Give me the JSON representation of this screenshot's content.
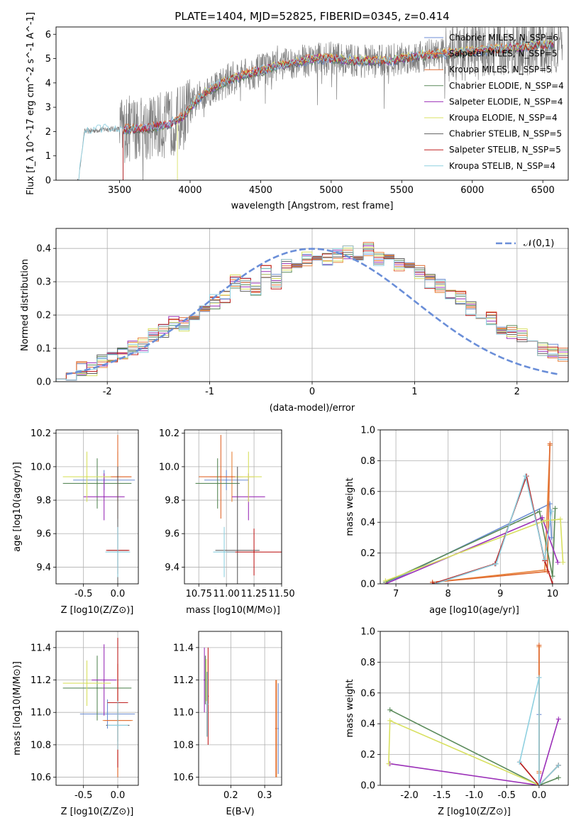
{
  "figure": {
    "title": "PLATE=1404, MJD=52825, FIBERID=0345, z=0.414"
  },
  "colors": {
    "Chabrier MILES": "#6c8ed4",
    "Salpeter MILES": "#e8843c",
    "Kroupa MILES": "#e06a30",
    "Chabrier ELODIE": "#5a8a5a",
    "Salpeter ELODIE": "#9b30b8",
    "Kroupa ELODIE": "#d8e060",
    "Chabrier STELIB": "#606060",
    "Salpeter STELIB": "#c02020",
    "Kroupa STELIB": "#8ed0e0",
    "data": "#808080",
    "gaussian": "#6a8ed8"
  },
  "chart_data": [
    {
      "id": "spectrum",
      "type": "line",
      "title": "PLATE=1404, MJD=52825, FIBERID=0345, z=0.414",
      "xlabel": "wavelength [Angstrom, rest frame]",
      "ylabel": "Flux [f_λ 10^-17 erg cm^-2 s^-1 A^-1]",
      "xlim": [
        3050,
        6680
      ],
      "ylim": [
        0,
        6.3
      ],
      "xticks": [
        3500,
        4000,
        4500,
        5000,
        5500,
        6000,
        6500
      ],
      "yticks": [
        0,
        1,
        2,
        3,
        4,
        5,
        6
      ],
      "legend_position": "right",
      "series": [
        {
          "name": "Chabrier MILES, N_SSP=6"
        },
        {
          "name": "Salpeter MILES, N_SSP=5"
        },
        {
          "name": "Kroupa MILES, N_SSP=5"
        },
        {
          "name": "Chabrier ELODIE, N_SSP=4"
        },
        {
          "name": "Salpeter ELODIE, N_SSP=4"
        },
        {
          "name": "Kroupa ELODIE, N_SSP=4"
        },
        {
          "name": "Chabrier STELIB, N_SSP=5"
        },
        {
          "name": "Salpeter STELIB, N_SSP=5"
        },
        {
          "name": "Kroupa STELIB, N_SSP=4"
        }
      ],
      "continuum_knots": {
        "x": [
          3210,
          3250,
          3400,
          3500,
          3600,
          3700,
          3850,
          3950,
          4000,
          4100,
          4300,
          4500,
          4700,
          4900,
          5000,
          5200,
          5400,
          5600,
          5800,
          6000,
          6200,
          6400,
          6560
        ],
        "y": [
          0.0,
          2.0,
          2.1,
          2.1,
          2.1,
          2.15,
          2.3,
          2.6,
          3.0,
          3.6,
          4.2,
          4.5,
          4.8,
          5.0,
          5.0,
          4.9,
          4.9,
          5.1,
          5.2,
          5.3,
          5.4,
          5.5,
          5.6
        ]
      }
    },
    {
      "id": "residuals",
      "type": "histogram",
      "xlabel": "(data-model)/error",
      "ylabel": "Normed distribution",
      "xlim": [
        -2.5,
        2.5
      ],
      "ylim": [
        0,
        0.46
      ],
      "xticks": [
        -2,
        -1,
        0,
        1,
        2
      ],
      "yticks": [
        0.0,
        0.1,
        0.2,
        0.3,
        0.4
      ],
      "legend": "𝒩(0,1)",
      "legend_position": "top-right",
      "bin_width": 0.1,
      "base_values": [
        0.03,
        0.025,
        0.04,
        0.035,
        0.06,
        0.08,
        0.09,
        0.1,
        0.11,
        0.14,
        0.15,
        0.18,
        0.17,
        0.2,
        0.22,
        0.24,
        0.25,
        0.3,
        0.29,
        0.28,
        0.33,
        0.3,
        0.35,
        0.36,
        0.37,
        0.38,
        0.37,
        0.38,
        0.39,
        0.38,
        0.4,
        0.37,
        0.36,
        0.35,
        0.34,
        0.33,
        0.3,
        0.29,
        0.27,
        0.25,
        0.22,
        0.2,
        0.19,
        0.16,
        0.15,
        0.14,
        0.12,
        0.1,
        0.09,
        0.08
      ]
    },
    {
      "id": "age-vs-Z",
      "type": "scatter",
      "xlabel": "Z [log10(Z/Z⊙)]",
      "ylabel": "age [log10(age/yr)]",
      "xlim": [
        -0.9,
        0.3
      ],
      "ylim": [
        9.3,
        10.22
      ],
      "xticks": [
        -0.5,
        0.0
      ],
      "yticks": [
        9.4,
        9.6,
        9.8,
        10.0,
        10.2
      ],
      "points": [
        {
          "series": "Chabrier MILES",
          "x": -0.2,
          "y": 9.92,
          "xerr": 0.45,
          "yerr": 0.06
        },
        {
          "series": "Salpeter MILES",
          "x": 0.0,
          "y": 9.94,
          "xerr": 0.2,
          "yerr": 0.15
        },
        {
          "series": "Kroupa MILES",
          "x": 0.0,
          "y": 9.94,
          "xerr": 0.2,
          "yerr": 0.25
        },
        {
          "series": "Chabrier ELODIE",
          "x": -0.3,
          "y": 9.9,
          "xerr": 0.5,
          "yerr": 0.15
        },
        {
          "series": "Salpeter ELODIE",
          "x": -0.2,
          "y": 9.82,
          "xerr": 0.3,
          "yerr": 0.14
        },
        {
          "series": "Kroupa ELODIE",
          "x": -0.45,
          "y": 9.94,
          "xerr": 0.35,
          "yerr": 0.15
        },
        {
          "series": "Chabrier STELIB",
          "x": 0.0,
          "y": 9.5,
          "xerr": 0.15,
          "yerr": 0.5
        },
        {
          "series": "Salpeter STELIB",
          "x": 0.0,
          "y": 9.5,
          "xerr": 0.17,
          "yerr": 0.14
        },
        {
          "series": "Kroupa STELIB",
          "x": 0.0,
          "y": 9.49,
          "xerr": 0.18,
          "yerr": 0.15
        }
      ]
    },
    {
      "id": "age-vs-mass",
      "type": "scatter",
      "xlabel": "mass [log10(M/M⊙)]",
      "ylabel": "",
      "xlim": [
        10.62,
        11.5
      ],
      "ylim": [
        9.3,
        10.22
      ],
      "xticks": [
        10.75,
        11.0,
        11.25,
        11.5
      ],
      "yticks": [
        9.4,
        9.6,
        9.8,
        10.0,
        10.2
      ],
      "points": [
        {
          "series": "Chabrier MILES",
          "x": 11.0,
          "y": 9.92,
          "xerr": 0.2,
          "yerr": 0.06
        },
        {
          "series": "Salpeter MILES",
          "x": 11.05,
          "y": 9.94,
          "xerr": 0.2,
          "yerr": 0.15
        },
        {
          "series": "Kroupa MILES",
          "x": 10.95,
          "y": 9.94,
          "xerr": 0.2,
          "yerr": 0.25
        },
        {
          "series": "Chabrier ELODIE",
          "x": 10.92,
          "y": 9.9,
          "xerr": 0.2,
          "yerr": 0.15
        },
        {
          "series": "Salpeter ELODIE",
          "x": 11.2,
          "y": 9.82,
          "xerr": 0.15,
          "yerr": 0.14
        },
        {
          "series": "Kroupa ELODIE",
          "x": 11.2,
          "y": 9.94,
          "xerr": 0.12,
          "yerr": 0.15
        },
        {
          "series": "Chabrier STELIB",
          "x": 11.1,
          "y": 9.5,
          "xerr": 0.2,
          "yerr": 0.5
        },
        {
          "series": "Salpeter STELIB",
          "x": 11.25,
          "y": 9.49,
          "xerr": 0.25,
          "yerr": 0.14
        },
        {
          "series": "Kroupa STELIB",
          "x": 10.98,
          "y": 9.49,
          "xerr": 0.1,
          "yerr": 0.15
        }
      ]
    },
    {
      "id": "massweight-vs-age",
      "type": "line",
      "xlabel": "age [log10(age/yr)]",
      "ylabel": "mass weight",
      "xlim": [
        6.7,
        10.3
      ],
      "ylim": [
        0.0,
        1.0
      ],
      "xticks": [
        7,
        8,
        9,
        10
      ],
      "yticks": [
        0.0,
        0.2,
        0.4,
        0.6,
        0.8,
        1.0
      ],
      "series": [
        {
          "series": "Chabrier MILES",
          "x": [
            6.8,
            9.95,
            9.98
          ],
          "y": [
            0.0,
            0.52,
            0.3
          ]
        },
        {
          "series": "Salpeter MILES",
          "x": [
            7.7,
            9.85,
            9.95
          ],
          "y": [
            0.01,
            0.09,
            0.9
          ]
        },
        {
          "series": "Kroupa MILES",
          "x": [
            7.7,
            9.9,
            9.95
          ],
          "y": [
            0.01,
            0.08,
            0.91
          ]
        },
        {
          "series": "Chabrier ELODIE",
          "x": [
            6.8,
            9.75,
            10.0,
            10.05
          ],
          "y": [
            0.01,
            0.47,
            0.05,
            0.49
          ]
        },
        {
          "series": "Salpeter ELODIE",
          "x": [
            6.8,
            9.8,
            10.1
          ],
          "y": [
            0.0,
            0.43,
            0.14
          ]
        },
        {
          "series": "Kroupa ELODIE",
          "x": [
            6.8,
            9.85,
            10.15,
            10.2
          ],
          "y": [
            0.02,
            0.41,
            0.42,
            0.14
          ]
        },
        {
          "series": "Chabrier STELIB",
          "x": [
            7.7,
            8.9,
            9.5,
            9.85,
            10.0
          ],
          "y": [
            0.0,
            0.13,
            0.7,
            0.15,
            0.0
          ]
        },
        {
          "series": "Salpeter STELIB",
          "x": [
            7.7,
            8.9,
            9.5,
            9.85,
            10.0
          ],
          "y": [
            0.0,
            0.13,
            0.7,
            0.15,
            0.0
          ]
        },
        {
          "series": "Kroupa STELIB",
          "x": [
            7.75,
            8.92,
            9.48,
            9.85,
            9.98
          ],
          "y": [
            0.0,
            0.13,
            0.7,
            0.16,
            0.47
          ]
        }
      ]
    },
    {
      "id": "mass-vs-Z",
      "type": "scatter",
      "xlabel": "Z [log10(Z/Z⊙)]",
      "ylabel": "mass [log10(M/M⊙)]",
      "xlim": [
        -0.9,
        0.3
      ],
      "ylim": [
        10.55,
        11.5
      ],
      "xticks": [
        -0.5,
        0.0
      ],
      "yticks": [
        10.6,
        10.8,
        11.0,
        11.2,
        11.4
      ],
      "points": [
        {
          "series": "Chabrier MILES",
          "x": -0.15,
          "y": 10.99,
          "xerr": 0.4,
          "yerr": 0.09
        },
        {
          "series": "Salpeter MILES",
          "x": 0.0,
          "y": 10.95,
          "xerr": 0.22,
          "yerr": 0.35
        },
        {
          "series": "Kroupa MILES",
          "x": 0.0,
          "y": 10.95,
          "xerr": 0.2,
          "yerr": 0.35
        },
        {
          "series": "Chabrier ELODIE",
          "x": -0.3,
          "y": 11.15,
          "xerr": 0.5,
          "yerr": 0.2
        },
        {
          "series": "Salpeter ELODIE",
          "x": -0.2,
          "y": 11.2,
          "xerr": 0.18,
          "yerr": 0.22
        },
        {
          "series": "Kroupa ELODIE",
          "x": -0.45,
          "y": 11.18,
          "xerr": 0.35,
          "yerr": 0.14
        },
        {
          "series": "Chabrier STELIB",
          "x": 0.0,
          "y": 10.92,
          "xerr": 0.17,
          "yerr": 0.1
        },
        {
          "series": "Salpeter STELIB",
          "x": 0.0,
          "y": 11.06,
          "xerr": 0.15,
          "yerr": 0.4
        },
        {
          "series": "Kroupa STELIB",
          "x": 0.0,
          "y": 10.92,
          "xerr": 0.15,
          "yerr": 0.15
        }
      ]
    },
    {
      "id": "mass-vs-ebv",
      "type": "scatter",
      "xlabel": "E(B-V)",
      "ylabel": "",
      "xlim": [
        0.105,
        0.35
      ],
      "ylim": [
        10.55,
        11.5
      ],
      "xticks": [
        0.2,
        0.3
      ],
      "yticks": [
        10.6,
        10.8,
        11.0,
        11.2,
        11.4
      ],
      "points": [
        {
          "series": "Chabrier MILES",
          "x": 0.34,
          "y": 10.9,
          "yerr": 0.28
        },
        {
          "series": "Salpeter MILES",
          "x": 0.335,
          "y": 10.9,
          "yerr": 0.3
        },
        {
          "series": "Kroupa MILES",
          "x": 0.333,
          "y": 10.9,
          "yerr": 0.3
        },
        {
          "series": "Chabrier ELODIE",
          "x": 0.125,
          "y": 11.2,
          "yerr": 0.15
        },
        {
          "series": "Salpeter ELODIE",
          "x": 0.122,
          "y": 11.2,
          "yerr": 0.2
        },
        {
          "series": "Kroupa ELODIE",
          "x": 0.128,
          "y": 11.2,
          "yerr": 0.13
        },
        {
          "series": "Chabrier STELIB",
          "x": 0.13,
          "y": 11.05,
          "yerr": 0.2
        },
        {
          "series": "Salpeter STELIB",
          "x": 0.133,
          "y": 11.1,
          "yerr": 0.3
        },
        {
          "series": "Kroupa STELIB",
          "x": 0.131,
          "y": 11.05,
          "yerr": 0.2
        }
      ]
    },
    {
      "id": "massweight-vs-Z",
      "type": "line",
      "xlabel": "Z [log10(Z/Z⊙)]",
      "ylabel": "mass weight",
      "xlim": [
        -2.45,
        0.45
      ],
      "ylim": [
        0.0,
        1.0
      ],
      "xticks": [
        -2.0,
        -1.5,
        -1.0,
        -0.5,
        0.0
      ],
      "yticks": [
        0.0,
        0.2,
        0.4,
        0.6,
        0.8,
        1.0
      ],
      "series": [
        {
          "series": "Chabrier MILES",
          "x": [
            0.0,
            0.0,
            0.0
          ],
          "y": [
            0.0,
            0.46,
            0.7
          ]
        },
        {
          "series": "Salpeter MILES",
          "x": [
            0.0,
            0.0
          ],
          "y": [
            0.09,
            0.9
          ]
        },
        {
          "series": "Kroupa MILES",
          "x": [
            0.0,
            0.0
          ],
          "y": [
            0.08,
            0.91
          ]
        },
        {
          "series": "Chabrier ELODIE",
          "x": [
            -2.3,
            0.0,
            0.3
          ],
          "y": [
            0.49,
            0.0,
            0.05
          ]
        },
        {
          "series": "Salpeter ELODIE",
          "x": [
            -2.3,
            0.0,
            0.3
          ],
          "y": [
            0.14,
            0.0,
            0.43
          ]
        },
        {
          "series": "Kroupa ELODIE",
          "x": [
            -2.32,
            -2.3,
            0.0,
            0.3
          ],
          "y": [
            0.14,
            0.42,
            0.0,
            0.13
          ]
        },
        {
          "series": "Chabrier STELIB",
          "x": [
            -0.3,
            0.0,
            0.3
          ],
          "y": [
            0.15,
            0.0,
            0.13
          ]
        },
        {
          "series": "Salpeter STELIB",
          "x": [
            -0.3,
            0.0,
            0.3
          ],
          "y": [
            0.15,
            0.0,
            0.13
          ]
        },
        {
          "series": "Kroupa STELIB",
          "x": [
            -0.3,
            0.0,
            0.0,
            0.3
          ],
          "y": [
            0.15,
            0.7,
            0.0,
            0.13
          ]
        }
      ]
    }
  ]
}
